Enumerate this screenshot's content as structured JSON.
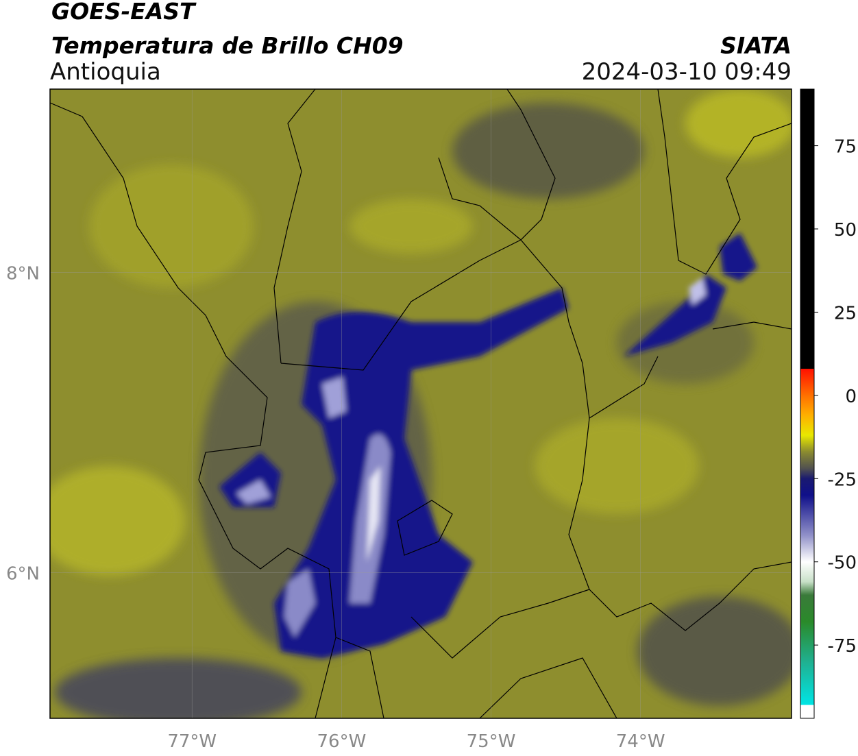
{
  "header": {
    "title": "GOES-EAST",
    "subtitle": "Temperatura de Brillo CH09",
    "region": "Antioquia",
    "source": "SIATA",
    "timestamp": "2024-03-10 09:49"
  },
  "map": {
    "xlim": [
      -77.95,
      -72.99
    ],
    "ylim": [
      5.03,
      9.22
    ],
    "xticks": [
      {
        "value": -77,
        "label": "77°W"
      },
      {
        "value": -76,
        "label": "76°W"
      },
      {
        "value": -75,
        "label": "75°W"
      },
      {
        "value": -74,
        "label": "74°W"
      }
    ],
    "yticks": [
      {
        "value": 6,
        "label": "6°N"
      },
      {
        "value": 8,
        "label": "8°N"
      }
    ]
  },
  "colorbar": {
    "clim": [
      -97,
      92
    ],
    "ticks": [
      75,
      50,
      25,
      0,
      -25,
      -50,
      -75
    ],
    "stops": [
      {
        "value": -97,
        "color": "#ffffff"
      },
      {
        "value": -93,
        "color": "#ffffff"
      },
      {
        "value": -93,
        "color": "#00e5e5"
      },
      {
        "value": -80,
        "color": "#20b090"
      },
      {
        "value": -68,
        "color": "#2a8a2a"
      },
      {
        "value": -60,
        "color": "#3a7a3a"
      },
      {
        "value": -56,
        "color": "#c8e0c8"
      },
      {
        "value": -50,
        "color": "#ffffff"
      },
      {
        "value": -42,
        "color": "#9090c8"
      },
      {
        "value": -30,
        "color": "#10108a"
      },
      {
        "value": -25,
        "color": "#1a1a70"
      },
      {
        "value": -22,
        "color": "#505050"
      },
      {
        "value": -17,
        "color": "#8a8a30"
      },
      {
        "value": -12,
        "color": "#e8e800"
      },
      {
        "value": -6,
        "color": "#ffb000"
      },
      {
        "value": 0,
        "color": "#ff7000"
      },
      {
        "value": 8,
        "color": "#ff1000"
      },
      {
        "value": 8,
        "color": "#000000"
      },
      {
        "value": 92,
        "color": "#000000"
      }
    ]
  }
}
